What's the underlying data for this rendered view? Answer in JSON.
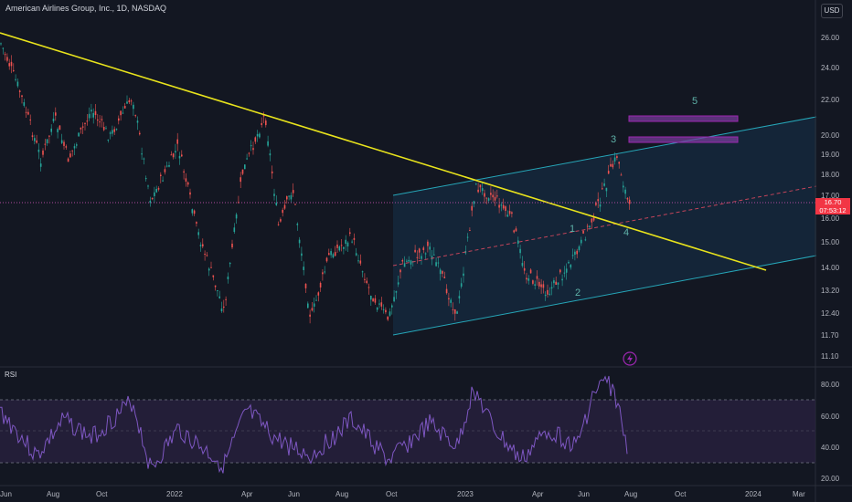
{
  "header": {
    "symbol_title": "American Airlines Group, Inc., 1D, NASDAQ",
    "currency_label": "USD"
  },
  "price_axis": {
    "ticks": [
      "26.00",
      "24.00",
      "22.00",
      "20.00",
      "19.00",
      "18.00",
      "17.00",
      "16.00",
      "15.00",
      "14.00",
      "13.20",
      "12.40",
      "11.70",
      "11.10"
    ],
    "current_price": "16.70",
    "countdown": "07:53:12"
  },
  "rsi_panel": {
    "label": "RSI",
    "ticks": [
      "80.00",
      "60.00",
      "40.00",
      "20.00"
    ]
  },
  "time_axis": {
    "labels": [
      "Jun",
      "Aug",
      "Oct",
      "2022",
      "Apr",
      "Jun",
      "Aug",
      "Oct",
      "2023",
      "Apr",
      "Jun",
      "Aug",
      "Oct",
      "2024",
      "Mar"
    ]
  },
  "annotations": {
    "wave_labels": [
      "1",
      "2",
      "3",
      "4",
      "5"
    ]
  },
  "colors": {
    "background": "#131722",
    "trendline": "#e8e31c",
    "channel": "#26a6b8",
    "channel_fill": "#1b3a4b",
    "midline": "#c2445a",
    "target_box": "#9c27b0",
    "rsi_line": "#7e57c2",
    "rsi_band": "#2a2140",
    "candle_up": "#26a69a",
    "candle_down": "#ef5350",
    "price_tag": "#f23645"
  },
  "icons": {
    "alert": "lightning-icon"
  }
}
